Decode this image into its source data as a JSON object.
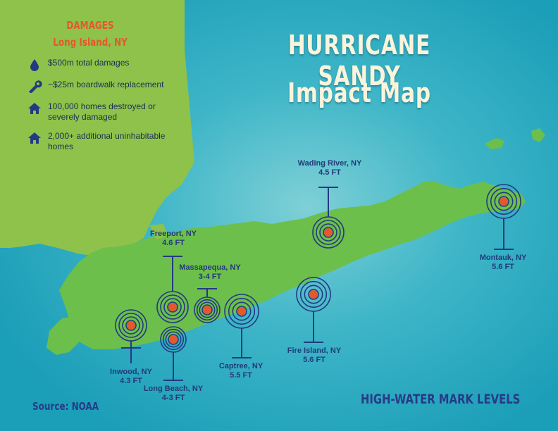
{
  "title": {
    "line1": "HURRICANE SANDY",
    "line2": "Impact Map"
  },
  "legend": {
    "heading1": "DAMAGES",
    "heading2": "Long Island, NY",
    "items": [
      {
        "icon": "water-drop-icon",
        "text": "$500m total damages"
      },
      {
        "icon": "wrench-icon",
        "text": "~$25m boardwalk replacement"
      },
      {
        "icon": "house-icon",
        "text": "100,000 homes destroyed or severely damaged"
      },
      {
        "icon": "house-icon",
        "text": "2,000+ additional uninhabitable homes"
      }
    ]
  },
  "places": [
    {
      "name": "Wading River, NY",
      "level": "4.5 FT"
    },
    {
      "name": "Freeport, NY",
      "level": "4.6 FT"
    },
    {
      "name": "Massapequa, NY",
      "level": "3-4 FT"
    },
    {
      "name": "Montauk, NY",
      "level": "5.6 FT"
    },
    {
      "name": "Fire Island, NY",
      "level": "5.6 FT"
    },
    {
      "name": "Captree, NY",
      "level": "5.5 FT"
    },
    {
      "name": "Inwood, NY",
      "level": "4.3 FT"
    },
    {
      "name": "Long Beach, NY",
      "level": "4-3 FT"
    }
  ],
  "footer": {
    "source": "Source: NOAA",
    "caption": "HIGH-WATER MARK LEVELS"
  },
  "colors": {
    "ocean": "#23a7bf",
    "land": "#6cbf4b",
    "mainland": "#8ec24a",
    "marker": "#e4582c",
    "ring": "#233a82",
    "title": "#fbf4dc"
  }
}
